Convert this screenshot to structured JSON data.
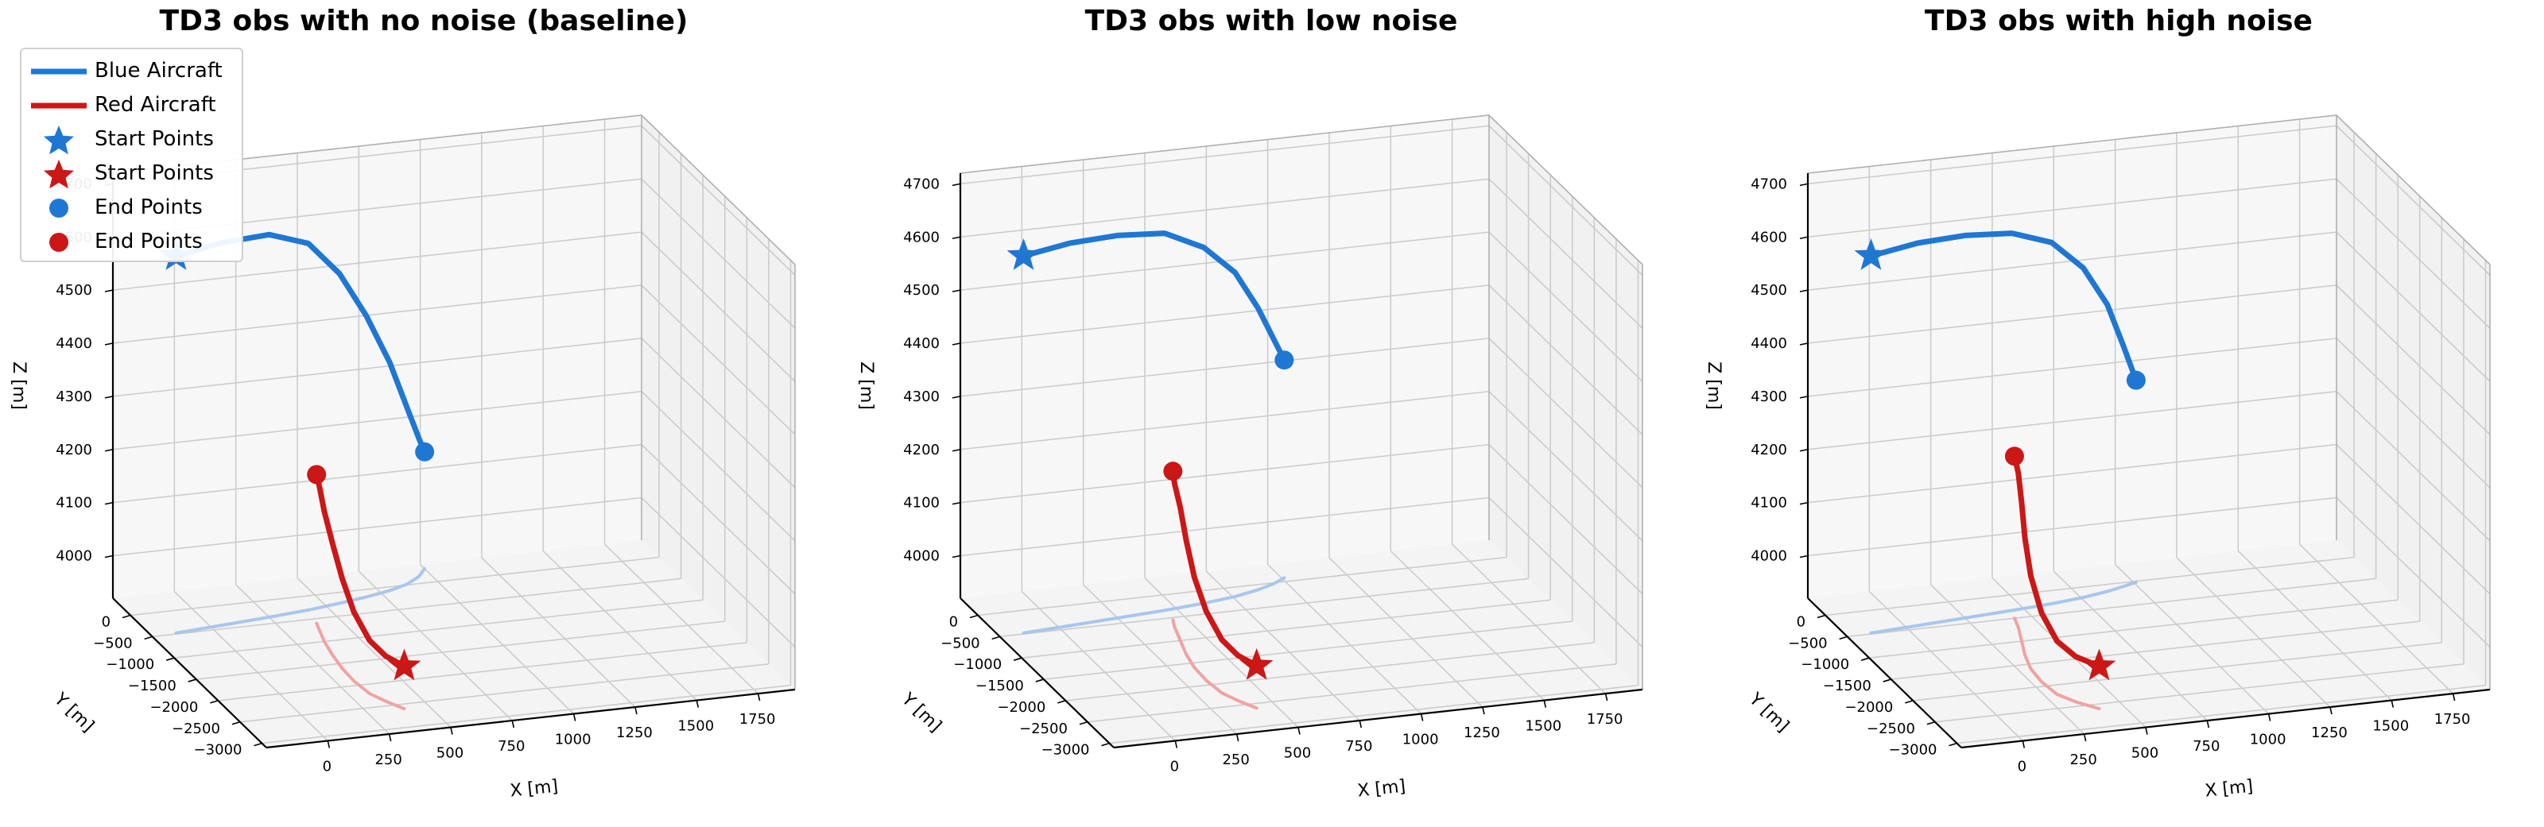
{
  "colors": {
    "blue": "#1f77d4",
    "red": "#cc1717",
    "blue_shadow": "#a9c6ec",
    "red_shadow": "#efa3a3",
    "pane_back": "#f7f7f7",
    "pane_side": "#f1f1f1",
    "pane_floor": "#f4f4f4",
    "grid": "#cccccc"
  },
  "legend": {
    "items": [
      {
        "label": "Blue Aircraft",
        "symbol": "line",
        "color": "blue"
      },
      {
        "label": "Red Aircraft",
        "symbol": "line",
        "color": "red"
      },
      {
        "label": "Start Points",
        "symbol": "star",
        "color": "blue"
      },
      {
        "label": "Start Points",
        "symbol": "star",
        "color": "red"
      },
      {
        "label": "End Points",
        "symbol": "circle",
        "color": "blue"
      },
      {
        "label": "End Points",
        "symbol": "circle",
        "color": "red"
      }
    ]
  },
  "chart_data": [
    {
      "type": "line3d",
      "title": "TD3 obs with no noise (baseline)",
      "xlabel": "X [m]",
      "ylabel": "Y [m]",
      "zlabel": "Z [m]",
      "xlim": [
        -250,
        1900
      ],
      "ylim": [
        -3100,
        400
      ],
      "zlim": [
        3920,
        4720
      ],
      "xticks": [
        0,
        250,
        500,
        750,
        1000,
        1250,
        1500,
        1750
      ],
      "yticks": [
        0,
        -500,
        -1000,
        -1500,
        -2000,
        -2500,
        -3000
      ],
      "zticks": [
        4000,
        4100,
        4200,
        4300,
        4400,
        4500,
        4600,
        4700
      ],
      "grid": true,
      "legend": "upper-left",
      "series": [
        {
          "name": "Blue Aircraft",
          "color": "blue",
          "x": [
            -150,
            50,
            250,
            420,
            560,
            680,
            790,
            880,
            950,
            1000
          ],
          "y": [
            -480,
            -420,
            -360,
            -300,
            -230,
            -160,
            -80,
            20,
            150,
            300
          ],
          "z": [
            4630,
            4640,
            4640,
            4610,
            4540,
            4450,
            4350,
            4250,
            4180,
            4140
          ]
        },
        {
          "name": "Red Aircraft",
          "color": "red",
          "x": [
            400,
            360,
            330,
            320,
            325,
            340,
            360,
            385,
            400
          ],
          "y": [
            -2600,
            -2400,
            -2200,
            -1900,
            -1600,
            -1300,
            -1000,
            -750,
            -600
          ],
          "z": [
            4000,
            4005,
            4020,
            4050,
            4090,
            4130,
            4165,
            4190,
            4200
          ]
        }
      ]
    },
    {
      "type": "line3d",
      "title": "TD3 obs with low noise",
      "xlabel": "X [m]",
      "ylabel": "Y [m]",
      "zlabel": "Z [m]",
      "xlim": [
        -250,
        1900
      ],
      "ylim": [
        -3100,
        400
      ],
      "zlim": [
        3920,
        4720
      ],
      "xticks": [
        0,
        250,
        500,
        750,
        1000,
        1250,
        1500,
        1750
      ],
      "yticks": [
        0,
        -500,
        -1000,
        -1500,
        -2000,
        -2500,
        -3000
      ],
      "zticks": [
        4000,
        4100,
        4200,
        4300,
        4400,
        4500,
        4600,
        4700
      ],
      "grid": true,
      "series": [
        {
          "name": "Blue Aircraft",
          "color": "blue",
          "x": [
            -150,
            50,
            250,
            450,
            620,
            760,
            870,
            950,
            1010
          ],
          "y": [
            -480,
            -430,
            -380,
            -330,
            -270,
            -200,
            -110,
            -20,
            80
          ],
          "z": [
            4630,
            4640,
            4640,
            4630,
            4590,
            4530,
            4450,
            4380,
            4330
          ]
        },
        {
          "name": "Red Aircraft",
          "color": "red",
          "x": [
            420,
            380,
            350,
            340,
            345,
            365,
            395,
            425,
            445
          ],
          "y": [
            -2600,
            -2400,
            -2200,
            -1900,
            -1600,
            -1300,
            -1000,
            -700,
            -550
          ],
          "z": [
            4000,
            4005,
            4020,
            4050,
            4090,
            4135,
            4170,
            4190,
            4200
          ]
        }
      ]
    },
    {
      "type": "line3d",
      "title": "TD3 obs with high noise",
      "xlabel": "X [m]",
      "ylabel": "Y [m]",
      "zlabel": "Z [m]",
      "xlim": [
        -250,
        1900
      ],
      "ylim": [
        -3100,
        400
      ],
      "zlim": [
        3920,
        4720
      ],
      "xticks": [
        0,
        250,
        500,
        750,
        1000,
        1250,
        1500,
        1750
      ],
      "yticks": [
        0,
        -500,
        -1000,
        -1500,
        -2000,
        -2500,
        -3000
      ],
      "zticks": [
        4000,
        4100,
        4200,
        4300,
        4400,
        4500,
        4600,
        4700
      ],
      "grid": true,
      "series": [
        {
          "name": "Blue Aircraft",
          "color": "blue",
          "x": [
            -150,
            50,
            250,
            450,
            620,
            760,
            870,
            950,
            1010
          ],
          "y": [
            -480,
            -430,
            -380,
            -330,
            -280,
            -220,
            -150,
            -80,
            -20
          ],
          "z": [
            4630,
            4640,
            4640,
            4630,
            4600,
            4540,
            4460,
            4370,
            4300
          ]
        },
        {
          "name": "Red Aircraft",
          "color": "red",
          "x": [
            400,
            340,
            300,
            290,
            300,
            330,
            370,
            410,
            430
          ],
          "y": [
            -2600,
            -2400,
            -2200,
            -1900,
            -1600,
            -1300,
            -1000,
            -700,
            -500
          ],
          "z": [
            4000,
            4005,
            4020,
            4050,
            4095,
            4140,
            4180,
            4210,
            4225
          ]
        }
      ]
    }
  ]
}
